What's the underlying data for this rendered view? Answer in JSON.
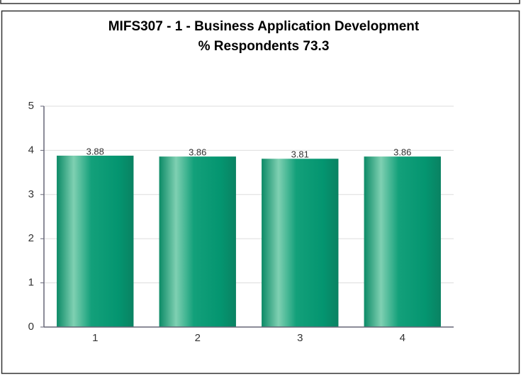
{
  "chart_data": {
    "type": "bar",
    "title": "MIFS307 - 1 - Business Application Development",
    "subtitle": "% Respondents 73.3",
    "categories": [
      "1",
      "2",
      "3",
      "4"
    ],
    "values": [
      3.88,
      3.86,
      3.81,
      3.86
    ],
    "color": "#089b72",
    "ylim": [
      0,
      5
    ],
    "yticks": [
      0,
      1,
      2,
      3,
      4,
      5
    ],
    "grid": true
  }
}
